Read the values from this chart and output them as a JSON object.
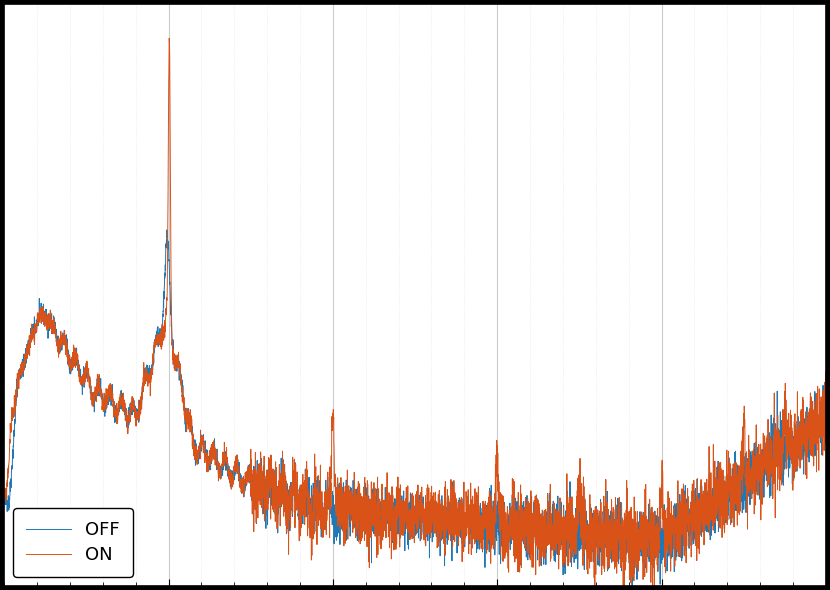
{
  "color_off": "#1f77b4",
  "color_on": "#d95319",
  "legend_labels": [
    "OFF",
    "ON"
  ],
  "background_color": "#ffffff",
  "fig_facecolor": "#000000",
  "figsize": [
    8.3,
    5.9
  ],
  "dpi": 100,
  "freq_max": 500,
  "num_points": 5000,
  "grid_major_color": "#cccccc",
  "grid_minor_color": "#dddddd"
}
